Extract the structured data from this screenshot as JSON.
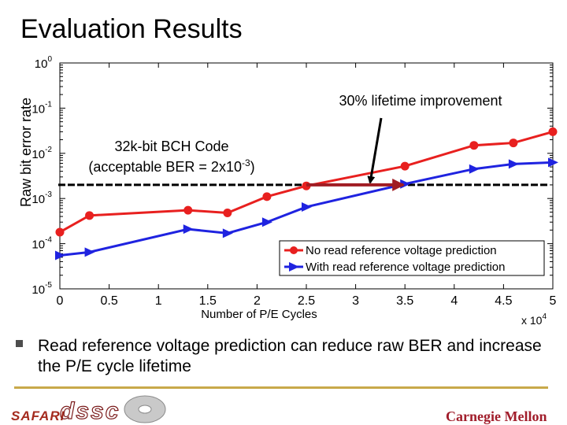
{
  "slide": {
    "title": "Evaluation Results",
    "bullet_text": "Read reference voltage prediction can reduce raw BER and increase the P/E cycle lifetime",
    "logos": {
      "left": "SAFARI",
      "middle": "dssc",
      "right": "Carnegie Mellon"
    }
  },
  "chart_data": {
    "type": "line",
    "xlabel": "Number of P/E Cycles",
    "ylabel": "Raw bit error rate",
    "x_multiplier": "x 10",
    "x_multiplier_exp": "4",
    "xlim": [
      0,
      5
    ],
    "x_ticks": [
      "0",
      "0.5",
      "1",
      "1.5",
      "2",
      "2.5",
      "3",
      "3.5",
      "4",
      "4.5",
      "5"
    ],
    "y_scale": "log",
    "ylim": [
      1e-05,
      1
    ],
    "y_ticks": [
      {
        "base": "10",
        "exp": "0"
      },
      {
        "base": "10",
        "exp": "-1"
      },
      {
        "base": "10",
        "exp": "-2"
      },
      {
        "base": "10",
        "exp": "-3"
      },
      {
        "base": "10",
        "exp": "-4"
      },
      {
        "base": "10",
        "exp": "-5"
      }
    ],
    "series": [
      {
        "name": "No read reference voltage prediction",
        "color": "#e8201f",
        "marker": "circle",
        "x": [
          0,
          0.3,
          1.3,
          1.7,
          2.1,
          2.5,
          3.5,
          4.2,
          4.6,
          5.0
        ],
        "y": [
          0.00018,
          0.00042,
          0.00055,
          0.00048,
          0.0011,
          0.0019,
          0.0052,
          0.015,
          0.017,
          0.03
        ]
      },
      {
        "name": "With read reference voltage prediction",
        "color": "#1f23e0",
        "marker": "triangle-right",
        "x": [
          0,
          0.3,
          1.3,
          1.7,
          2.1,
          2.5,
          3.5,
          4.2,
          4.6,
          5.0
        ],
        "y": [
          5.5e-05,
          6.5e-05,
          0.00021,
          0.00017,
          0.0003,
          0.00065,
          0.0021,
          0.0045,
          0.0058,
          0.0063
        ]
      }
    ],
    "threshold": {
      "y": 0.002,
      "style": "dashed"
    },
    "annotations": [
      {
        "text": "30% lifetime improvement"
      },
      {
        "text_line1": "32k-bit BCH Code",
        "text_line2_prefix": "(acceptable BER = 2x10",
        "text_line2_exp": "-3",
        "text_line2_suffix": ")"
      }
    ],
    "improvement_arrow": {
      "from_x": 2.5,
      "to_x": 3.5,
      "y": 0.002,
      "color": "#a01c23"
    },
    "legend_position": "bottom-right",
    "grid": false
  }
}
